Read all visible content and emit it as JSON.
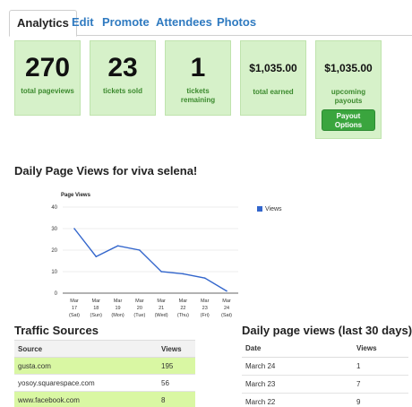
{
  "tabs": [
    "Analytics",
    "Edit",
    "Promote",
    "Attendees",
    "Photos"
  ],
  "stats": {
    "pageviews": {
      "value": "270",
      "label": "total pageviews"
    },
    "sold": {
      "value": "23",
      "label": "tickets sold"
    },
    "remaining": {
      "value": "1",
      "label": "tickets remaining"
    },
    "earned": {
      "value": "$1,035.00",
      "label": "total earned"
    },
    "upcoming": {
      "value": "$1,035.00",
      "label": "upcoming payouts",
      "button": "Payout Options"
    }
  },
  "chart_section_title": "Daily Page Views for viva selena!",
  "chart_data": {
    "type": "line",
    "title": "Page Views",
    "categories": [
      [
        "Mar",
        "17",
        "(Sat)"
      ],
      [
        "Mar",
        "18",
        "(Sun)"
      ],
      [
        "Mar",
        "19",
        "(Mon)"
      ],
      [
        "Mar",
        "20",
        "(Tue)"
      ],
      [
        "Mar",
        "21",
        "(Wed)"
      ],
      [
        "Mar",
        "22",
        "(Thu)"
      ],
      [
        "Mar",
        "23",
        "(Fri)"
      ],
      [
        "Mar",
        "24",
        "(Sat)"
      ]
    ],
    "series": [
      {
        "name": "Views",
        "values": [
          30,
          17,
          22,
          20,
          10,
          9,
          7,
          1
        ]
      }
    ],
    "ylim": [
      0,
      40
    ],
    "yticks": [
      0,
      10,
      20,
      30,
      40
    ],
    "legend": "right",
    "colors": {
      "line": "#3366cc",
      "grid": "#d9d9d9",
      "axis": "#333333"
    }
  },
  "traffic": {
    "title": "Traffic Sources",
    "headers": [
      "Source",
      "Views"
    ],
    "rows": [
      {
        "source": "gusta.com",
        "views": "195",
        "highlight": true
      },
      {
        "source": "yosoy.squarespace.com",
        "views": "56",
        "highlight": false
      },
      {
        "source": "www.facebook.com",
        "views": "8",
        "highlight": true
      }
    ]
  },
  "daily": {
    "title": "Daily page views (last 30 days)",
    "headers": [
      "Date",
      "Views"
    ],
    "rows": [
      {
        "date": "March 24",
        "views": "1"
      },
      {
        "date": "March 23",
        "views": "7"
      },
      {
        "date": "March 22",
        "views": "9"
      }
    ]
  }
}
